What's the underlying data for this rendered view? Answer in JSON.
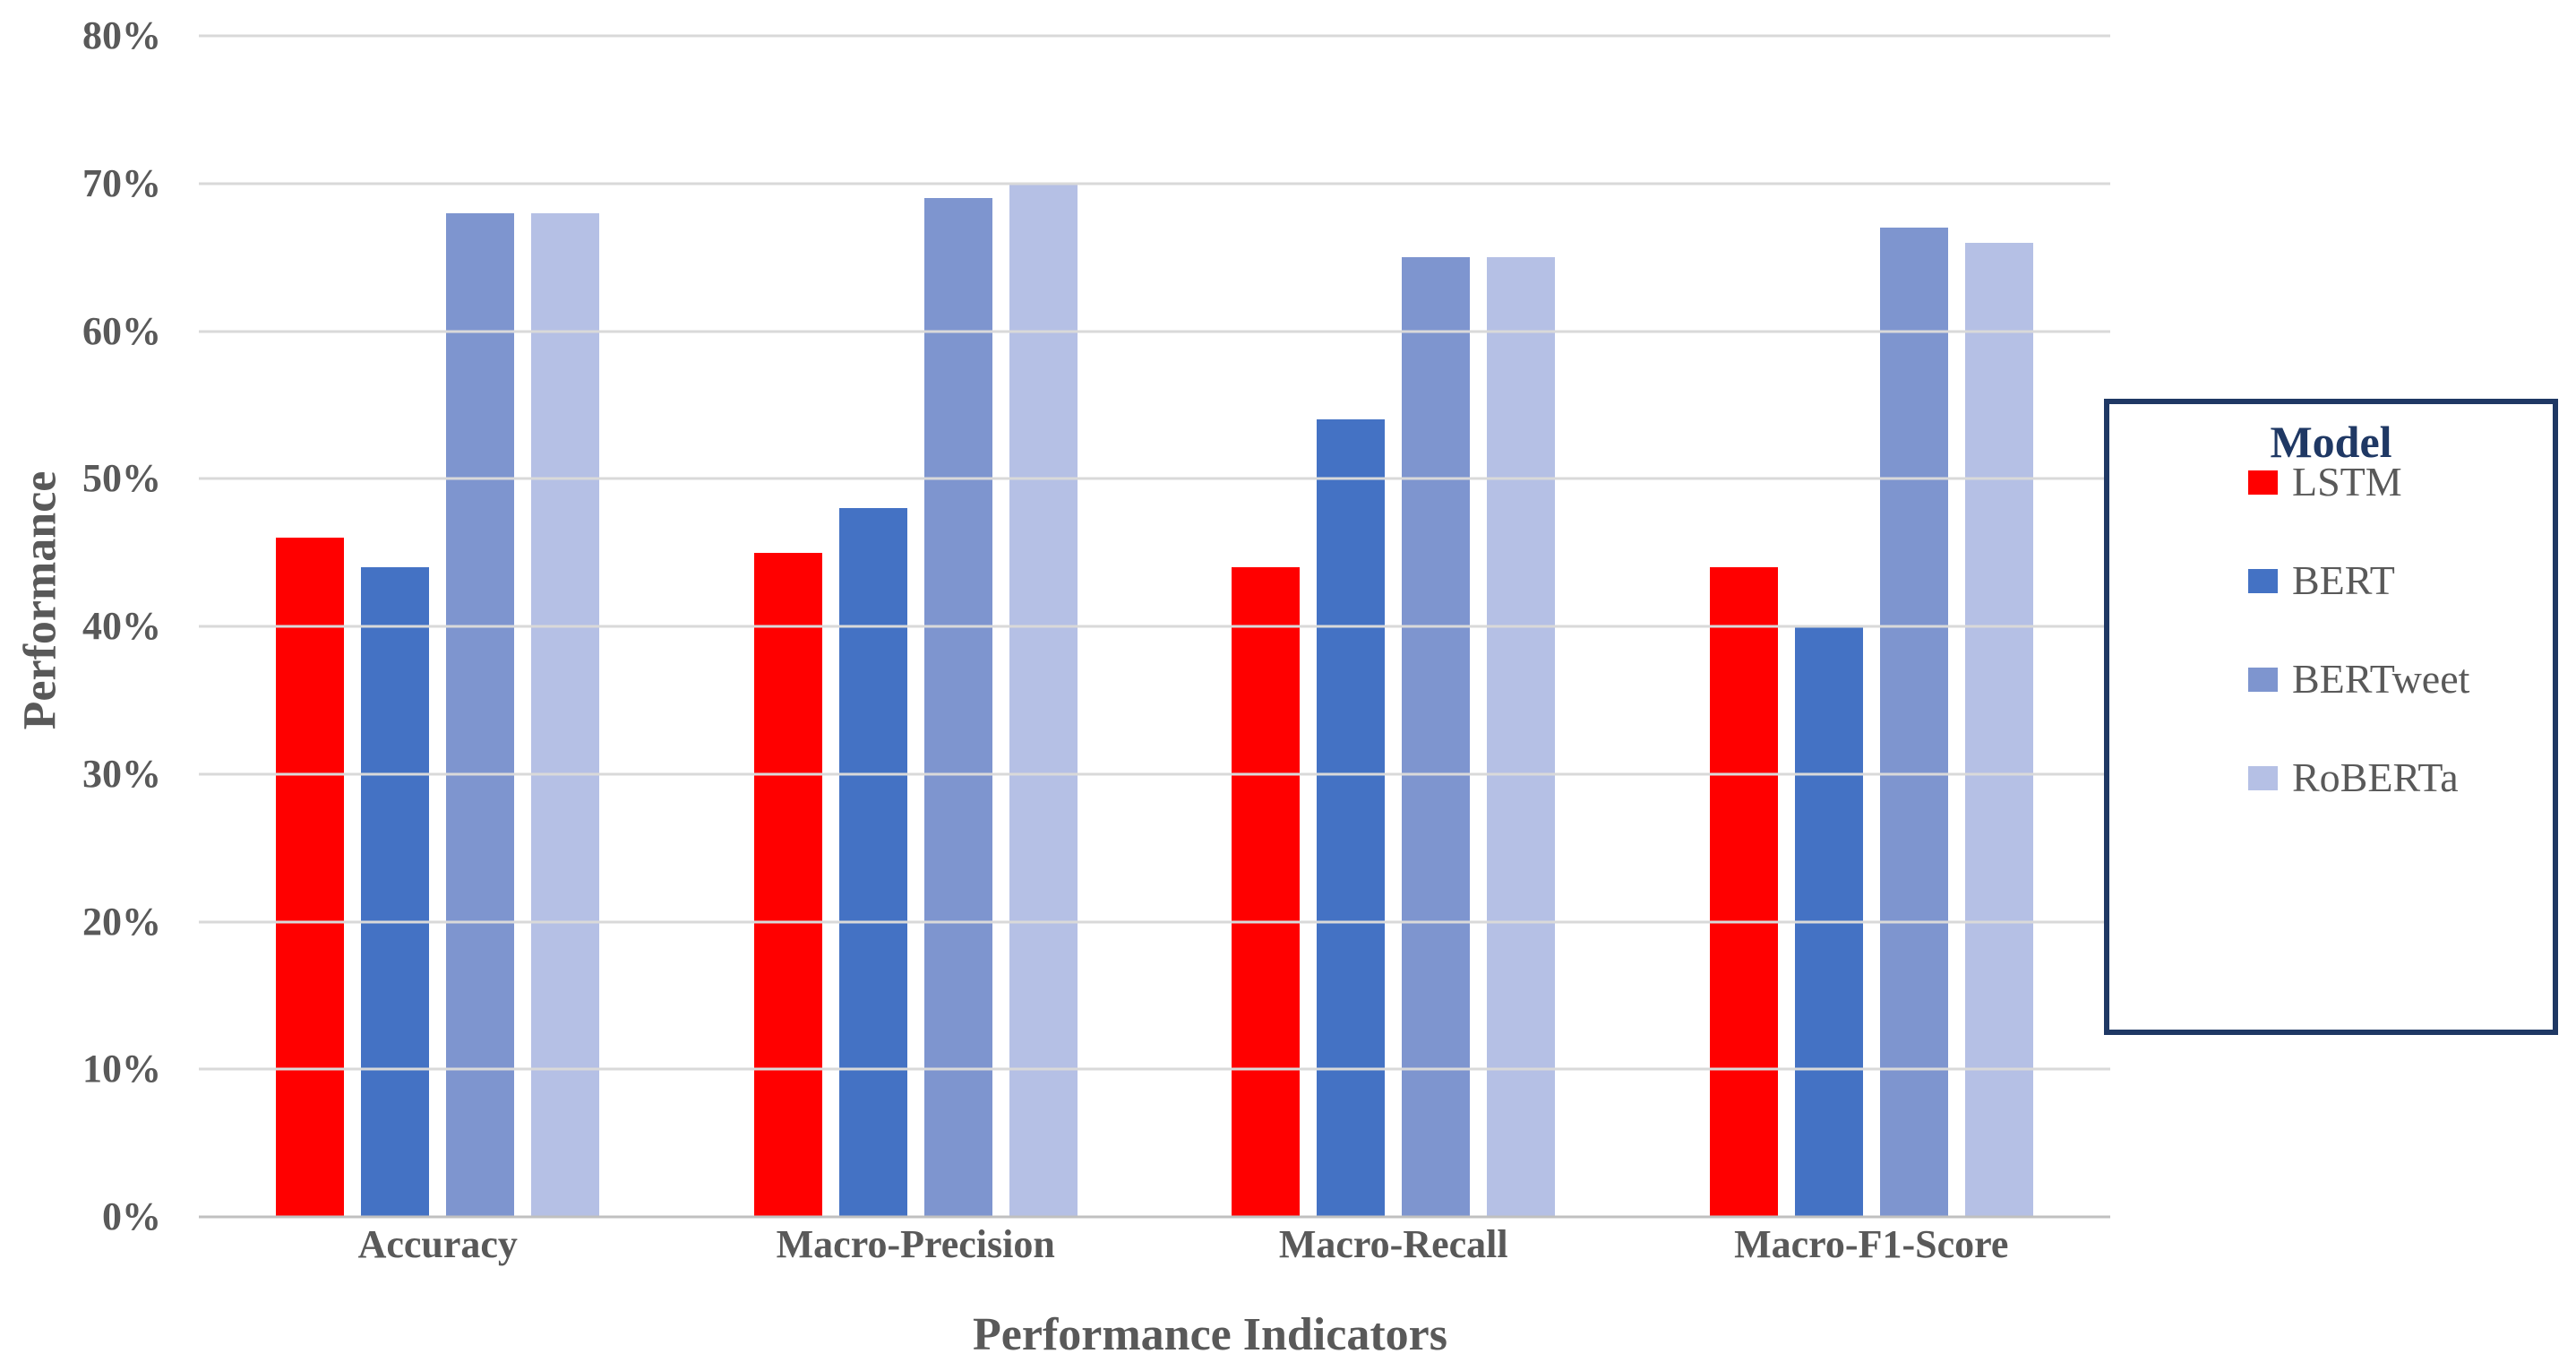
{
  "chart_data": {
    "type": "bar",
    "categories": [
      "Accuracy",
      "Macro-Precision",
      "Macro-Recall",
      "Macro-F1-Score"
    ],
    "series": [
      {
        "name": "LSTM",
        "color": "#FF0000",
        "values": [
          46,
          45,
          44,
          44
        ]
      },
      {
        "name": "BERT",
        "color": "#4472C4",
        "values": [
          44,
          48,
          54,
          40
        ]
      },
      {
        "name": "BERTweet",
        "color": "#7E95CF",
        "values": [
          68,
          69,
          65,
          67
        ]
      },
      {
        "name": "RoBERTa",
        "color": "#B5C0E5",
        "values": [
          68,
          70,
          65,
          66
        ]
      }
    ],
    "xlabel": "Performance Indicators",
    "ylabel": "Performance",
    "ylim": [
      0,
      80
    ],
    "ytick_step": 10,
    "yticks": [
      "0%",
      "10%",
      "20%",
      "30%",
      "40%",
      "50%",
      "60%",
      "70%",
      "80%"
    ],
    "grid": true,
    "legend": {
      "title": "Model",
      "position": "right"
    }
  },
  "colors": {
    "grid": "#D9D9D9",
    "axis_line": "#C0C0C0",
    "text": "#595959",
    "legend_border": "#1F3864",
    "legend_title": "#1F3864",
    "background": "#FFFFFF"
  }
}
